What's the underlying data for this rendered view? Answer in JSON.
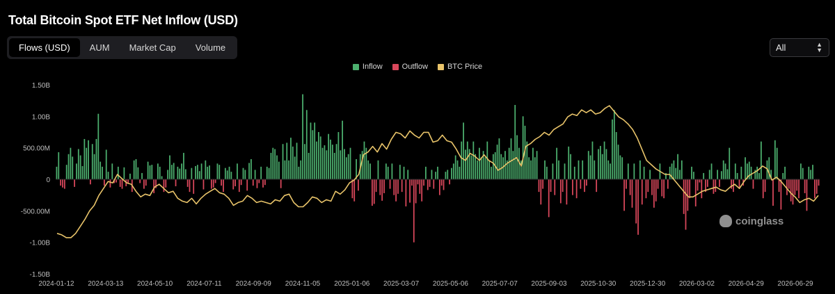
{
  "title": "Total Bitcoin Spot ETF Net Inflow (USD)",
  "tabs": [
    {
      "label": "Flows (USD)",
      "active": true
    },
    {
      "label": "AUM",
      "active": false
    },
    {
      "label": "Market Cap",
      "active": false
    },
    {
      "label": "Volume",
      "active": false
    }
  ],
  "range_select": {
    "value": "All"
  },
  "legend": [
    {
      "label": "Inflow",
      "color": "#4caf6e"
    },
    {
      "label": "Outflow",
      "color": "#d9475b"
    },
    {
      "label": "BTC Price",
      "color": "#e9c46a"
    }
  ],
  "watermark": "coinglass",
  "chart_data": {
    "type": "bar",
    "y_axis": {
      "ticks": [
        1500000000,
        1000000000,
        500000000,
        0,
        -500000000,
        -1000000000,
        -1500000000
      ],
      "tick_labels": [
        "1.50B",
        "1.00B",
        "500.00M",
        "0",
        "-500.00M",
        "-1.00B",
        "-1.50B"
      ],
      "range": [
        -1500000000,
        1500000000
      ]
    },
    "x_axis": {
      "tick_labels": [
        "2024-01-12",
        "2024-03-13",
        "2024-05-10",
        "2024-07-11",
        "2024-09-09",
        "2024-11-05",
        "2025-01-06",
        "2025-03-07",
        "2025-05-06",
        "2025-07-07",
        "2025-09-03",
        "2025-10-30",
        "2025-12-30",
        "2026-03-02",
        "2026-04-29",
        "2026-06-29"
      ]
    },
    "grid": false,
    "legend_position": "top-center",
    "flow_series": {
      "name": "Inflow / Outflow",
      "unit": "USD",
      "values": [
        200000000,
        430000000,
        -100000000,
        -130000000,
        -150000000,
        230000000,
        400000000,
        500000000,
        360000000,
        -120000000,
        250000000,
        480000000,
        380000000,
        210000000,
        640000000,
        500000000,
        620000000,
        -80000000,
        560000000,
        400000000,
        640000000,
        1040000000,
        280000000,
        200000000,
        -100000000,
        470000000,
        120000000,
        -130000000,
        250000000,
        -60000000,
        -50000000,
        200000000,
        -120000000,
        -150000000,
        190000000,
        -110000000,
        -70000000,
        90000000,
        -200000000,
        300000000,
        320000000,
        190000000,
        -60000000,
        100000000,
        -150000000,
        -100000000,
        280000000,
        220000000,
        230000000,
        -220000000,
        -140000000,
        250000000,
        200000000,
        50000000,
        -200000000,
        -130000000,
        150000000,
        380000000,
        230000000,
        260000000,
        -110000000,
        200000000,
        170000000,
        250000000,
        420000000,
        160000000,
        -120000000,
        -200000000,
        180000000,
        -230000000,
        210000000,
        230000000,
        130000000,
        250000000,
        -160000000,
        300000000,
        200000000,
        220000000,
        -150000000,
        -130000000,
        -60000000,
        250000000,
        230000000,
        -100000000,
        -200000000,
        180000000,
        140000000,
        200000000,
        120000000,
        -160000000,
        -110000000,
        250000000,
        -200000000,
        -90000000,
        180000000,
        150000000,
        -180000000,
        260000000,
        320000000,
        -100000000,
        150000000,
        -140000000,
        -60000000,
        200000000,
        -130000000,
        -90000000,
        200000000,
        180000000,
        420000000,
        500000000,
        480000000,
        380000000,
        280000000,
        -140000000,
        560000000,
        300000000,
        580000000,
        300000000,
        660000000,
        520000000,
        360000000,
        580000000,
        200000000,
        300000000,
        1350000000,
        560000000,
        1100000000,
        420000000,
        900000000,
        780000000,
        900000000,
        600000000,
        750000000,
        680000000,
        500000000,
        540000000,
        460000000,
        720000000,
        630000000,
        550000000,
        420000000,
        560000000,
        750000000,
        460000000,
        930000000,
        480000000,
        350000000,
        400000000,
        500000000,
        -300000000,
        -350000000,
        320000000,
        -180000000,
        400000000,
        450000000,
        600000000,
        500000000,
        300000000,
        250000000,
        -420000000,
        -390000000,
        -200000000,
        300000000,
        -250000000,
        -340000000,
        -220000000,
        250000000,
        200000000,
        -150000000,
        250000000,
        -250000000,
        -350000000,
        -230000000,
        230000000,
        -200000000,
        200000000,
        -430000000,
        150000000,
        -370000000,
        -100000000,
        -1000000000,
        -380000000,
        -80000000,
        -230000000,
        -350000000,
        -100000000,
        200000000,
        -170000000,
        -120000000,
        150000000,
        -150000000,
        120000000,
        200000000,
        -250000000,
        -100000000,
        -170000000,
        120000000,
        150000000,
        -80000000,
        180000000,
        250000000,
        380000000,
        300000000,
        200000000,
        600000000,
        900000000,
        470000000,
        600000000,
        480000000,
        380000000,
        600000000,
        400000000,
        300000000,
        500000000,
        350000000,
        450000000,
        350000000,
        600000000,
        300000000,
        200000000,
        400000000,
        430000000,
        550000000,
        650000000,
        400000000,
        350000000,
        450000000,
        300000000,
        500000000,
        650000000,
        450000000,
        1180000000,
        700000000,
        500000000,
        300000000,
        1000000000,
        850000000,
        600000000,
        350000000,
        300000000,
        500000000,
        350000000,
        450000000,
        -200000000,
        -400000000,
        -150000000,
        300000000,
        200000000,
        -600000000,
        -200000000,
        250000000,
        -250000000,
        500000000,
        300000000,
        -380000000,
        -200000000,
        250000000,
        -400000000,
        520000000,
        400000000,
        -250000000,
        200000000,
        -300000000,
        300000000,
        -150000000,
        300000000,
        -200000000,
        -100000000,
        450000000,
        380000000,
        600000000,
        300000000,
        -200000000,
        480000000,
        530000000,
        400000000,
        600000000,
        480000000,
        300000000,
        250000000,
        950000000,
        1100000000,
        750000000,
        550000000,
        380000000,
        350000000,
        -500000000,
        -150000000,
        250000000,
        -250000000,
        -450000000,
        250000000,
        -700000000,
        -880000000,
        300000000,
        -400000000,
        200000000,
        -300000000,
        -200000000,
        150000000,
        -250000000,
        -450000000,
        -350000000,
        -150000000,
        250000000,
        -270000000,
        -300000000,
        100000000,
        -150000000,
        200000000,
        250000000,
        300000000,
        180000000,
        400000000,
        150000000,
        300000000,
        -550000000,
        -800000000,
        -500000000,
        -300000000,
        200000000,
        120000000,
        -430000000,
        -180000000,
        -50000000,
        -300000000,
        100000000,
        -200000000,
        -120000000,
        150000000,
        250000000,
        -230000000,
        -200000000,
        150000000,
        -120000000,
        130000000,
        300000000,
        250000000,
        160000000,
        500000000,
        -150000000,
        -200000000,
        250000000,
        100000000,
        -130000000,
        200000000,
        -100000000,
        350000000,
        250000000,
        280000000,
        200000000,
        -150000000,
        150000000,
        200000000,
        100000000,
        600000000,
        -300000000,
        -200000000,
        300000000,
        350000000,
        150000000,
        -420000000,
        620000000,
        500000000,
        -200000000,
        -480000000,
        100000000,
        200000000,
        -250000000,
        -150000000,
        -350000000,
        -400000000,
        -250000000,
        -180000000,
        -300000000,
        250000000,
        180000000,
        -220000000,
        -500000000,
        200000000,
        150000000,
        230000000,
        -300000000,
        -230000000,
        -100000000
      ]
    },
    "btc_price_series": {
      "name": "BTC Price",
      "relative_level": [
        0.08,
        0.07,
        0.05,
        0.05,
        0.08,
        0.13,
        0.18,
        0.24,
        0.28,
        0.35,
        0.4,
        0.45,
        0.44,
        0.5,
        0.47,
        0.44,
        0.43,
        0.38,
        0.34,
        0.36,
        0.35,
        0.41,
        0.43,
        0.4,
        0.37,
        0.38,
        0.33,
        0.31,
        0.3,
        0.33,
        0.29,
        0.33,
        0.36,
        0.38,
        0.4,
        0.37,
        0.36,
        0.33,
        0.28,
        0.3,
        0.31,
        0.35,
        0.33,
        0.3,
        0.31,
        0.3,
        0.29,
        0.32,
        0.31,
        0.35,
        0.36,
        0.3,
        0.27,
        0.27,
        0.3,
        0.34,
        0.33,
        0.3,
        0.32,
        0.31,
        0.38,
        0.36,
        0.39,
        0.44,
        0.46,
        0.5,
        0.64,
        0.66,
        0.7,
        0.66,
        0.72,
        0.68,
        0.75,
        0.8,
        0.79,
        0.76,
        0.81,
        0.78,
        0.76,
        0.8,
        0.8,
        0.73,
        0.74,
        0.78,
        0.74,
        0.73,
        0.68,
        0.62,
        0.6,
        0.65,
        0.63,
        0.6,
        0.64,
        0.6,
        0.58,
        0.53,
        0.55,
        0.58,
        0.6,
        0.62,
        0.56,
        0.7,
        0.72,
        0.75,
        0.77,
        0.8,
        0.78,
        0.82,
        0.84,
        0.86,
        0.91,
        0.93,
        0.92,
        0.96,
        0.94,
        0.96,
        0.93,
        0.94,
        0.97,
        0.99,
        0.95,
        0.91,
        0.89,
        0.86,
        0.82,
        0.76,
        0.68,
        0.6,
        0.57,
        0.54,
        0.52,
        0.5,
        0.5,
        0.46,
        0.42,
        0.38,
        0.34,
        0.34,
        0.36,
        0.38,
        0.39,
        0.4,
        0.41,
        0.39,
        0.38,
        0.41,
        0.43,
        0.4,
        0.45,
        0.49,
        0.51,
        0.53,
        0.56,
        0.54,
        0.46,
        0.48,
        0.45,
        0.41,
        0.37,
        0.34,
        0.3,
        0.32,
        0.33,
        0.31,
        0.35
      ]
    }
  }
}
